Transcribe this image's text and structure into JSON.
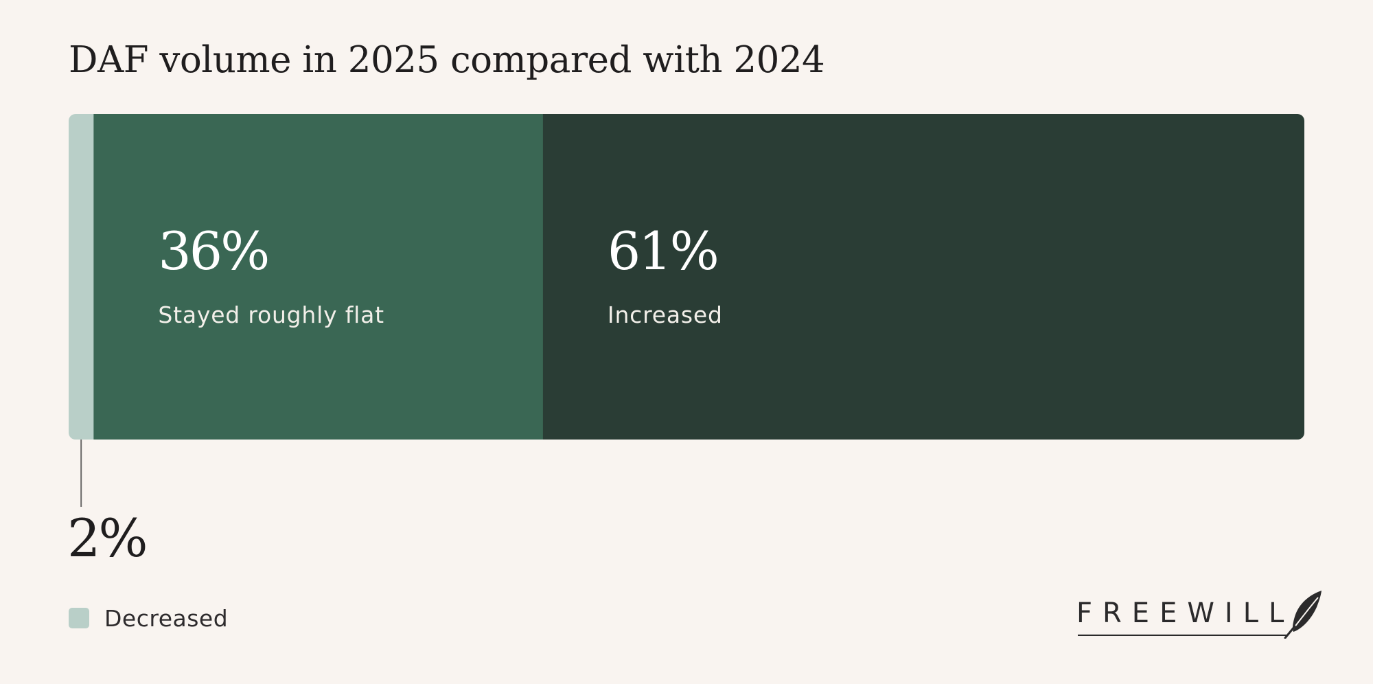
{
  "title": "DAF volume in 2025 compared with 2024",
  "chart_data": {
    "type": "bar",
    "orientation": "horizontal-stacked-100",
    "title": "DAF volume in 2025 compared with 2024",
    "categories": [
      "Decreased",
      "Stayed roughly flat",
      "Increased"
    ],
    "values": [
      2,
      36,
      61
    ],
    "value_labels": [
      "2%",
      "36%",
      "61%"
    ],
    "colors": [
      "#b9cfc8",
      "#3a6754",
      "#2a3d35"
    ],
    "legend": {
      "placement": "bottom-left",
      "entries": [
        "Decreased"
      ]
    }
  },
  "legend": {
    "label": "Decreased",
    "color": "#b9cfc8"
  },
  "logo": {
    "text": "FREEWILL",
    "icon": "feather-quill-icon"
  }
}
